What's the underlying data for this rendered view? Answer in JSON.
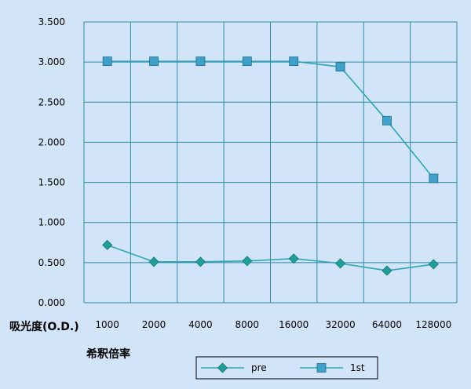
{
  "colors": {
    "background": "#d2e4f7",
    "grid": "#2e8ba6",
    "series_line": "#2aa5b5",
    "pre_marker": "#1f9e9a",
    "first_marker": "#3fa0c8"
  },
  "labels": {
    "ylabel": "吸光度(O.D.)",
    "xlabel": "希釈倍率"
  },
  "chart_data": {
    "type": "line",
    "title": "",
    "xlabel": "希釈倍率",
    "ylabel": "吸光度(O.D.)",
    "categories": [
      "1000",
      "2000",
      "4000",
      "8000",
      "16000",
      "32000",
      "64000",
      "128000"
    ],
    "ylim": [
      0,
      3.5
    ],
    "yticks": [
      "0.000",
      "0.500",
      "1.000",
      "1.500",
      "2.000",
      "2.500",
      "3.000",
      "3.500"
    ],
    "grid": true,
    "legend_position": "bottom",
    "series": [
      {
        "name": "pre",
        "marker": "diamond",
        "values": [
          0.72,
          0.51,
          0.51,
          0.52,
          0.55,
          0.49,
          0.4,
          0.48
        ]
      },
      {
        "name": "1st",
        "marker": "square",
        "values": [
          3.01,
          3.01,
          3.01,
          3.01,
          3.01,
          2.94,
          2.27,
          1.55
        ]
      }
    ]
  }
}
